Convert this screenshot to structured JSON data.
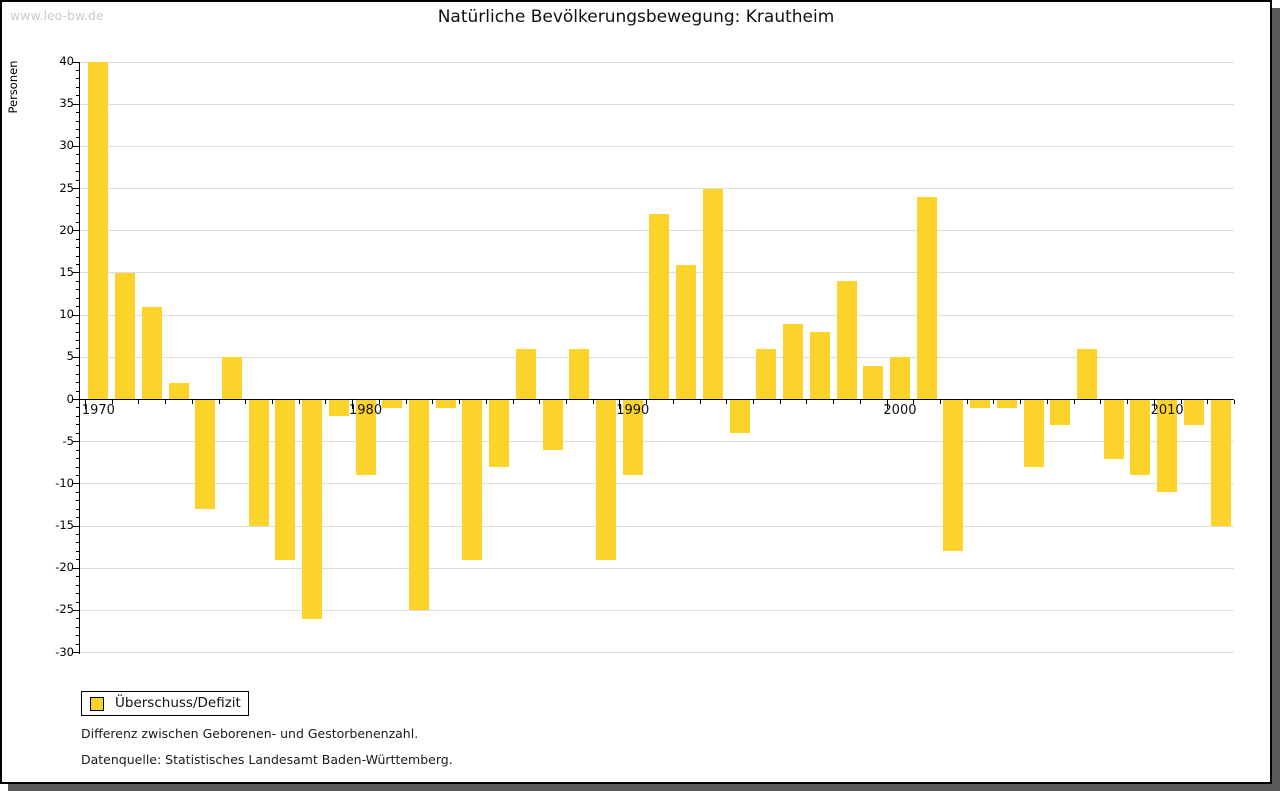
{
  "watermark": "www.leo-bw.de",
  "header": {
    "title": "Natürliche Bevölkerungsbewegung: Krautheim"
  },
  "legend": {
    "label": "Überschuss/Defizit"
  },
  "notes": {
    "line1": "Differenz zwischen Geborenen- und Gestorbenenzahl.",
    "line2": "Datenquelle: Statistisches Landesamt Baden-Württemberg."
  },
  "colors": {
    "bar": "#FCD32B",
    "grid": "#dddddd",
    "axis": "#000000",
    "shadow": "#5a5a5a",
    "watermark": "#cccccc"
  },
  "chart_data": {
    "type": "bar",
    "title": "Natürliche Bevölkerungsbewegung: Krautheim",
    "xlabel": "",
    "ylabel": "Personen",
    "ylim": [
      -30,
      40
    ],
    "ytick_step": 5,
    "grid": true,
    "legend_entries": [
      "Überschuss/Defizit"
    ],
    "legend_position": "bottom-left",
    "xticks_labeled": [
      "1970",
      "1980",
      "1990",
      "2000",
      "2010"
    ],
    "years": [
      1970,
      1971,
      1972,
      1973,
      1974,
      1975,
      1976,
      1977,
      1978,
      1979,
      1980,
      1981,
      1982,
      1983,
      1984,
      1985,
      1986,
      1987,
      1988,
      1989,
      1990,
      1991,
      1992,
      1993,
      1994,
      1995,
      1996,
      1997,
      1998,
      1999,
      2000,
      2001,
      2002,
      2003,
      2004,
      2005,
      2006,
      2007,
      2008,
      2009,
      2010,
      2011,
      2012
    ],
    "values": [
      40,
      15,
      11,
      2,
      -13,
      5,
      -15,
      -19,
      -26,
      -2,
      -9,
      -1,
      -25,
      -1,
      -19,
      -8,
      6,
      -6,
      6,
      -19,
      -9,
      22,
      16,
      25,
      -4,
      6,
      9,
      8,
      14,
      4,
      5,
      24,
      -18,
      -1,
      -1,
      -8,
      -3,
      6,
      -7,
      -9,
      -11,
      -3,
      -15
    ]
  }
}
